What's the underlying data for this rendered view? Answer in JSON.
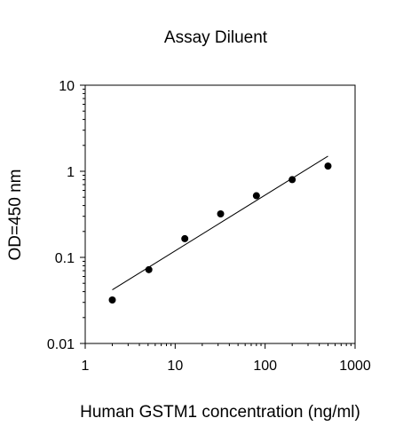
{
  "chart_data": {
    "type": "scatter",
    "title": "Assay Diluent",
    "xlabel": "Human GSTM1 concentration (ng/ml)",
    "ylabel": "OD=450 nm",
    "x_scale": "log",
    "y_scale": "log",
    "xlim": [
      1,
      1000
    ],
    "ylim": [
      0.01,
      10
    ],
    "x_ticks": [
      1,
      10,
      100,
      1000
    ],
    "y_ticks": [
      0.01,
      0.1,
      1,
      10
    ],
    "x_tick_labels": [
      "1",
      "10",
      "100",
      "1000"
    ],
    "y_tick_labels": [
      "0.01",
      "0.1",
      "1",
      "10"
    ],
    "grid": false,
    "legend": "none",
    "series": [
      {
        "points": [
          {
            "x": 2.0,
            "y": 0.032
          },
          {
            "x": 5.1,
            "y": 0.072
          },
          {
            "x": 12.8,
            "y": 0.165
          },
          {
            "x": 32.0,
            "y": 0.32
          },
          {
            "x": 80.0,
            "y": 0.52
          },
          {
            "x": 200.0,
            "y": 0.8
          },
          {
            "x": 500.0,
            "y": 1.15
          }
        ],
        "color": "#000000"
      }
    ],
    "trendline": {
      "x_range": [
        2.0,
        500.0
      ],
      "y_at_range": [
        0.042,
        1.5
      ],
      "color": "#000000"
    }
  }
}
